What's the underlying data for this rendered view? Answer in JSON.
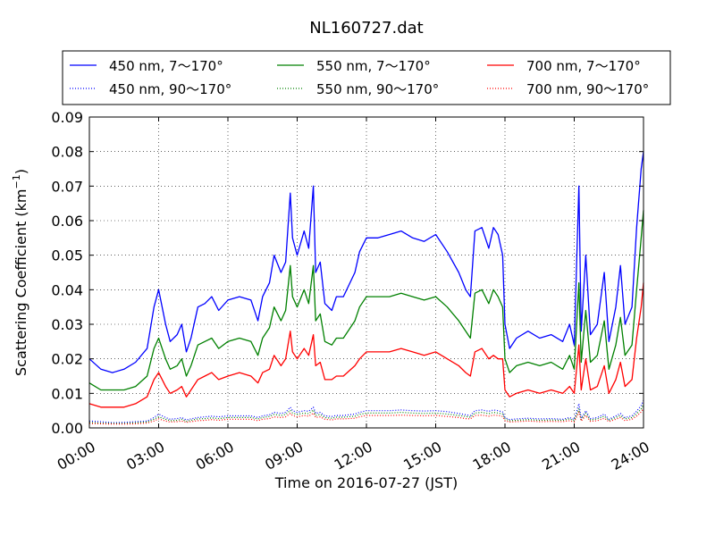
{
  "chart_data": {
    "type": "line",
    "title": "NL160727.dat",
    "xlabel": "Time on 2016-07-27 (JST)",
    "ylabel": "Scattering Coefficient (km",
    "ylabel_sup": "−1",
    "ylabel_close": ")",
    "xlim": [
      0,
      24
    ],
    "ylim": [
      0,
      0.09
    ],
    "x_ticks": [
      0,
      3,
      6,
      9,
      12,
      15,
      18,
      21,
      24
    ],
    "x_tick_labels": [
      "00:00",
      "03:00",
      "06:00",
      "09:00",
      "12:00",
      "15:00",
      "18:00",
      "21:00",
      "24:00"
    ],
    "y_ticks": [
      0,
      0.01,
      0.02,
      0.03,
      0.04,
      0.05,
      0.06,
      0.07,
      0.08,
      0.09
    ],
    "y_tick_labels": [
      "0.00",
      "0.01",
      "0.02",
      "0.03",
      "0.04",
      "0.05",
      "0.06",
      "0.07",
      "0.08",
      "0.09"
    ],
    "grid": true,
    "legend_position": "top",
    "x": [
      0.0,
      0.5,
      1.0,
      1.5,
      2.0,
      2.5,
      2.8,
      3.0,
      3.3,
      3.5,
      3.8,
      4.0,
      4.2,
      4.4,
      4.7,
      5.0,
      5.3,
      5.6,
      6.0,
      6.5,
      7.0,
      7.3,
      7.5,
      7.8,
      8.0,
      8.3,
      8.5,
      8.7,
      8.8,
      9.0,
      9.3,
      9.5,
      9.7,
      9.8,
      10.0,
      10.2,
      10.5,
      10.7,
      11.0,
      11.5,
      11.7,
      12.0,
      12.5,
      13.0,
      13.5,
      14.0,
      14.5,
      15.0,
      15.5,
      16.0,
      16.3,
      16.5,
      16.7,
      17.0,
      17.3,
      17.5,
      17.7,
      17.9,
      18.0,
      18.2,
      18.5,
      19.0,
      19.5,
      20.0,
      20.5,
      20.8,
      21.0,
      21.2,
      21.3,
      21.5,
      21.7,
      22.0,
      22.3,
      22.5,
      22.8,
      23.0,
      23.2,
      23.5,
      23.7,
      23.9,
      24.0
    ],
    "series": [
      {
        "name": "450 nm, 7～170°",
        "color": "#0000ff",
        "style": "solid",
        "values": [
          0.02,
          0.017,
          0.016,
          0.017,
          0.019,
          0.023,
          0.035,
          0.04,
          0.03,
          0.025,
          0.027,
          0.03,
          0.022,
          0.026,
          0.035,
          0.036,
          0.038,
          0.034,
          0.037,
          0.038,
          0.037,
          0.031,
          0.038,
          0.042,
          0.05,
          0.045,
          0.048,
          0.068,
          0.055,
          0.05,
          0.057,
          0.052,
          0.07,
          0.045,
          0.048,
          0.036,
          0.034,
          0.038,
          0.038,
          0.045,
          0.051,
          0.055,
          0.055,
          0.056,
          0.057,
          0.055,
          0.054,
          0.056,
          0.051,
          0.045,
          0.04,
          0.038,
          0.057,
          0.058,
          0.052,
          0.058,
          0.056,
          0.05,
          0.03,
          0.023,
          0.026,
          0.028,
          0.026,
          0.027,
          0.025,
          0.03,
          0.024,
          0.07,
          0.028,
          0.05,
          0.027,
          0.03,
          0.045,
          0.025,
          0.035,
          0.047,
          0.03,
          0.035,
          0.058,
          0.075,
          0.08
        ]
      },
      {
        "name": "450 nm, 90～170°",
        "color": "#0000ff",
        "style": "dotted",
        "values": [
          0.002,
          0.0018,
          0.0015,
          0.0016,
          0.0018,
          0.002,
          0.003,
          0.004,
          0.003,
          0.0025,
          0.0027,
          0.003,
          0.0023,
          0.0026,
          0.003,
          0.0032,
          0.0034,
          0.0032,
          0.0035,
          0.0035,
          0.0035,
          0.003,
          0.0035,
          0.0038,
          0.0045,
          0.0042,
          0.0045,
          0.006,
          0.005,
          0.0045,
          0.005,
          0.0048,
          0.006,
          0.0042,
          0.0045,
          0.0035,
          0.0033,
          0.0036,
          0.0036,
          0.004,
          0.0045,
          0.005,
          0.005,
          0.005,
          0.0052,
          0.005,
          0.0049,
          0.005,
          0.0047,
          0.0042,
          0.0038,
          0.0036,
          0.005,
          0.0052,
          0.0048,
          0.0052,
          0.005,
          0.0046,
          0.003,
          0.0024,
          0.0026,
          0.0028,
          0.0026,
          0.0027,
          0.0025,
          0.003,
          0.0024,
          0.007,
          0.0028,
          0.005,
          0.0027,
          0.003,
          0.004,
          0.0025,
          0.0035,
          0.0042,
          0.003,
          0.0035,
          0.0048,
          0.0065,
          0.008
        ]
      },
      {
        "name": "550 nm, 7～170°",
        "color": "#008000",
        "style": "solid",
        "values": [
          0.013,
          0.011,
          0.011,
          0.011,
          0.012,
          0.015,
          0.023,
          0.026,
          0.02,
          0.017,
          0.018,
          0.02,
          0.015,
          0.018,
          0.024,
          0.025,
          0.026,
          0.023,
          0.025,
          0.026,
          0.025,
          0.021,
          0.026,
          0.029,
          0.035,
          0.031,
          0.034,
          0.047,
          0.038,
          0.035,
          0.04,
          0.036,
          0.047,
          0.031,
          0.033,
          0.025,
          0.024,
          0.026,
          0.026,
          0.031,
          0.035,
          0.038,
          0.038,
          0.038,
          0.039,
          0.038,
          0.037,
          0.038,
          0.035,
          0.031,
          0.028,
          0.026,
          0.039,
          0.04,
          0.036,
          0.04,
          0.038,
          0.035,
          0.02,
          0.016,
          0.018,
          0.019,
          0.018,
          0.019,
          0.017,
          0.021,
          0.017,
          0.042,
          0.019,
          0.034,
          0.019,
          0.021,
          0.031,
          0.017,
          0.024,
          0.032,
          0.021,
          0.024,
          0.04,
          0.055,
          0.063
        ]
      },
      {
        "name": "550 nm, 90～170°",
        "color": "#008000",
        "style": "dotted",
        "values": [
          0.0016,
          0.0014,
          0.0013,
          0.0013,
          0.0015,
          0.0017,
          0.0025,
          0.0032,
          0.0025,
          0.0021,
          0.0022,
          0.0025,
          0.0019,
          0.0022,
          0.0026,
          0.0027,
          0.0029,
          0.0027,
          0.003,
          0.003,
          0.003,
          0.0026,
          0.003,
          0.0033,
          0.0039,
          0.0036,
          0.0039,
          0.0051,
          0.0043,
          0.0039,
          0.0043,
          0.0041,
          0.0052,
          0.0036,
          0.0039,
          0.003,
          0.0028,
          0.0031,
          0.0031,
          0.0034,
          0.0039,
          0.0043,
          0.0043,
          0.0043,
          0.0045,
          0.0043,
          0.0042,
          0.0043,
          0.004,
          0.0036,
          0.0033,
          0.0031,
          0.0043,
          0.0045,
          0.0041,
          0.0045,
          0.0043,
          0.004,
          0.0026,
          0.0021,
          0.0022,
          0.0024,
          0.0022,
          0.0023,
          0.0022,
          0.0026,
          0.0021,
          0.0055,
          0.0024,
          0.0043,
          0.0023,
          0.0026,
          0.0034,
          0.0022,
          0.003,
          0.0036,
          0.0026,
          0.003,
          0.0041,
          0.0055,
          0.0068
        ]
      },
      {
        "name": "700 nm, 7～170°",
        "color": "#ff0000",
        "style": "solid",
        "values": [
          0.007,
          0.006,
          0.006,
          0.006,
          0.007,
          0.009,
          0.014,
          0.016,
          0.012,
          0.01,
          0.011,
          0.012,
          0.009,
          0.011,
          0.014,
          0.015,
          0.016,
          0.014,
          0.015,
          0.016,
          0.015,
          0.013,
          0.016,
          0.017,
          0.021,
          0.018,
          0.02,
          0.028,
          0.022,
          0.02,
          0.023,
          0.021,
          0.027,
          0.018,
          0.019,
          0.014,
          0.014,
          0.015,
          0.015,
          0.018,
          0.02,
          0.022,
          0.022,
          0.022,
          0.023,
          0.022,
          0.021,
          0.022,
          0.02,
          0.018,
          0.016,
          0.015,
          0.022,
          0.023,
          0.02,
          0.021,
          0.02,
          0.02,
          0.011,
          0.009,
          0.01,
          0.011,
          0.01,
          0.011,
          0.01,
          0.012,
          0.01,
          0.024,
          0.011,
          0.02,
          0.011,
          0.012,
          0.018,
          0.01,
          0.014,
          0.019,
          0.012,
          0.014,
          0.026,
          0.035,
          0.042
        ]
      },
      {
        "name": "700 nm, 90～170°",
        "color": "#ff0000",
        "style": "dotted",
        "values": [
          0.0013,
          0.0012,
          0.0011,
          0.0011,
          0.0012,
          0.0014,
          0.002,
          0.0026,
          0.002,
          0.0017,
          0.0018,
          0.002,
          0.0016,
          0.0018,
          0.0021,
          0.0022,
          0.0024,
          0.0022,
          0.0025,
          0.0025,
          0.0025,
          0.0021,
          0.0025,
          0.0027,
          0.0032,
          0.003,
          0.0032,
          0.0042,
          0.0036,
          0.0032,
          0.0036,
          0.0034,
          0.0043,
          0.003,
          0.0032,
          0.0025,
          0.0023,
          0.0026,
          0.0026,
          0.0028,
          0.0032,
          0.0036,
          0.0036,
          0.0036,
          0.0037,
          0.0036,
          0.0035,
          0.0036,
          0.0033,
          0.003,
          0.0027,
          0.0026,
          0.0036,
          0.0037,
          0.0034,
          0.0037,
          0.0036,
          0.0033,
          0.0021,
          0.0017,
          0.0018,
          0.002,
          0.0018,
          0.0019,
          0.0018,
          0.0021,
          0.0017,
          0.0046,
          0.002,
          0.0036,
          0.0019,
          0.0021,
          0.0028,
          0.0018,
          0.0025,
          0.003,
          0.0021,
          0.0025,
          0.0034,
          0.0046,
          0.0057
        ]
      }
    ]
  }
}
